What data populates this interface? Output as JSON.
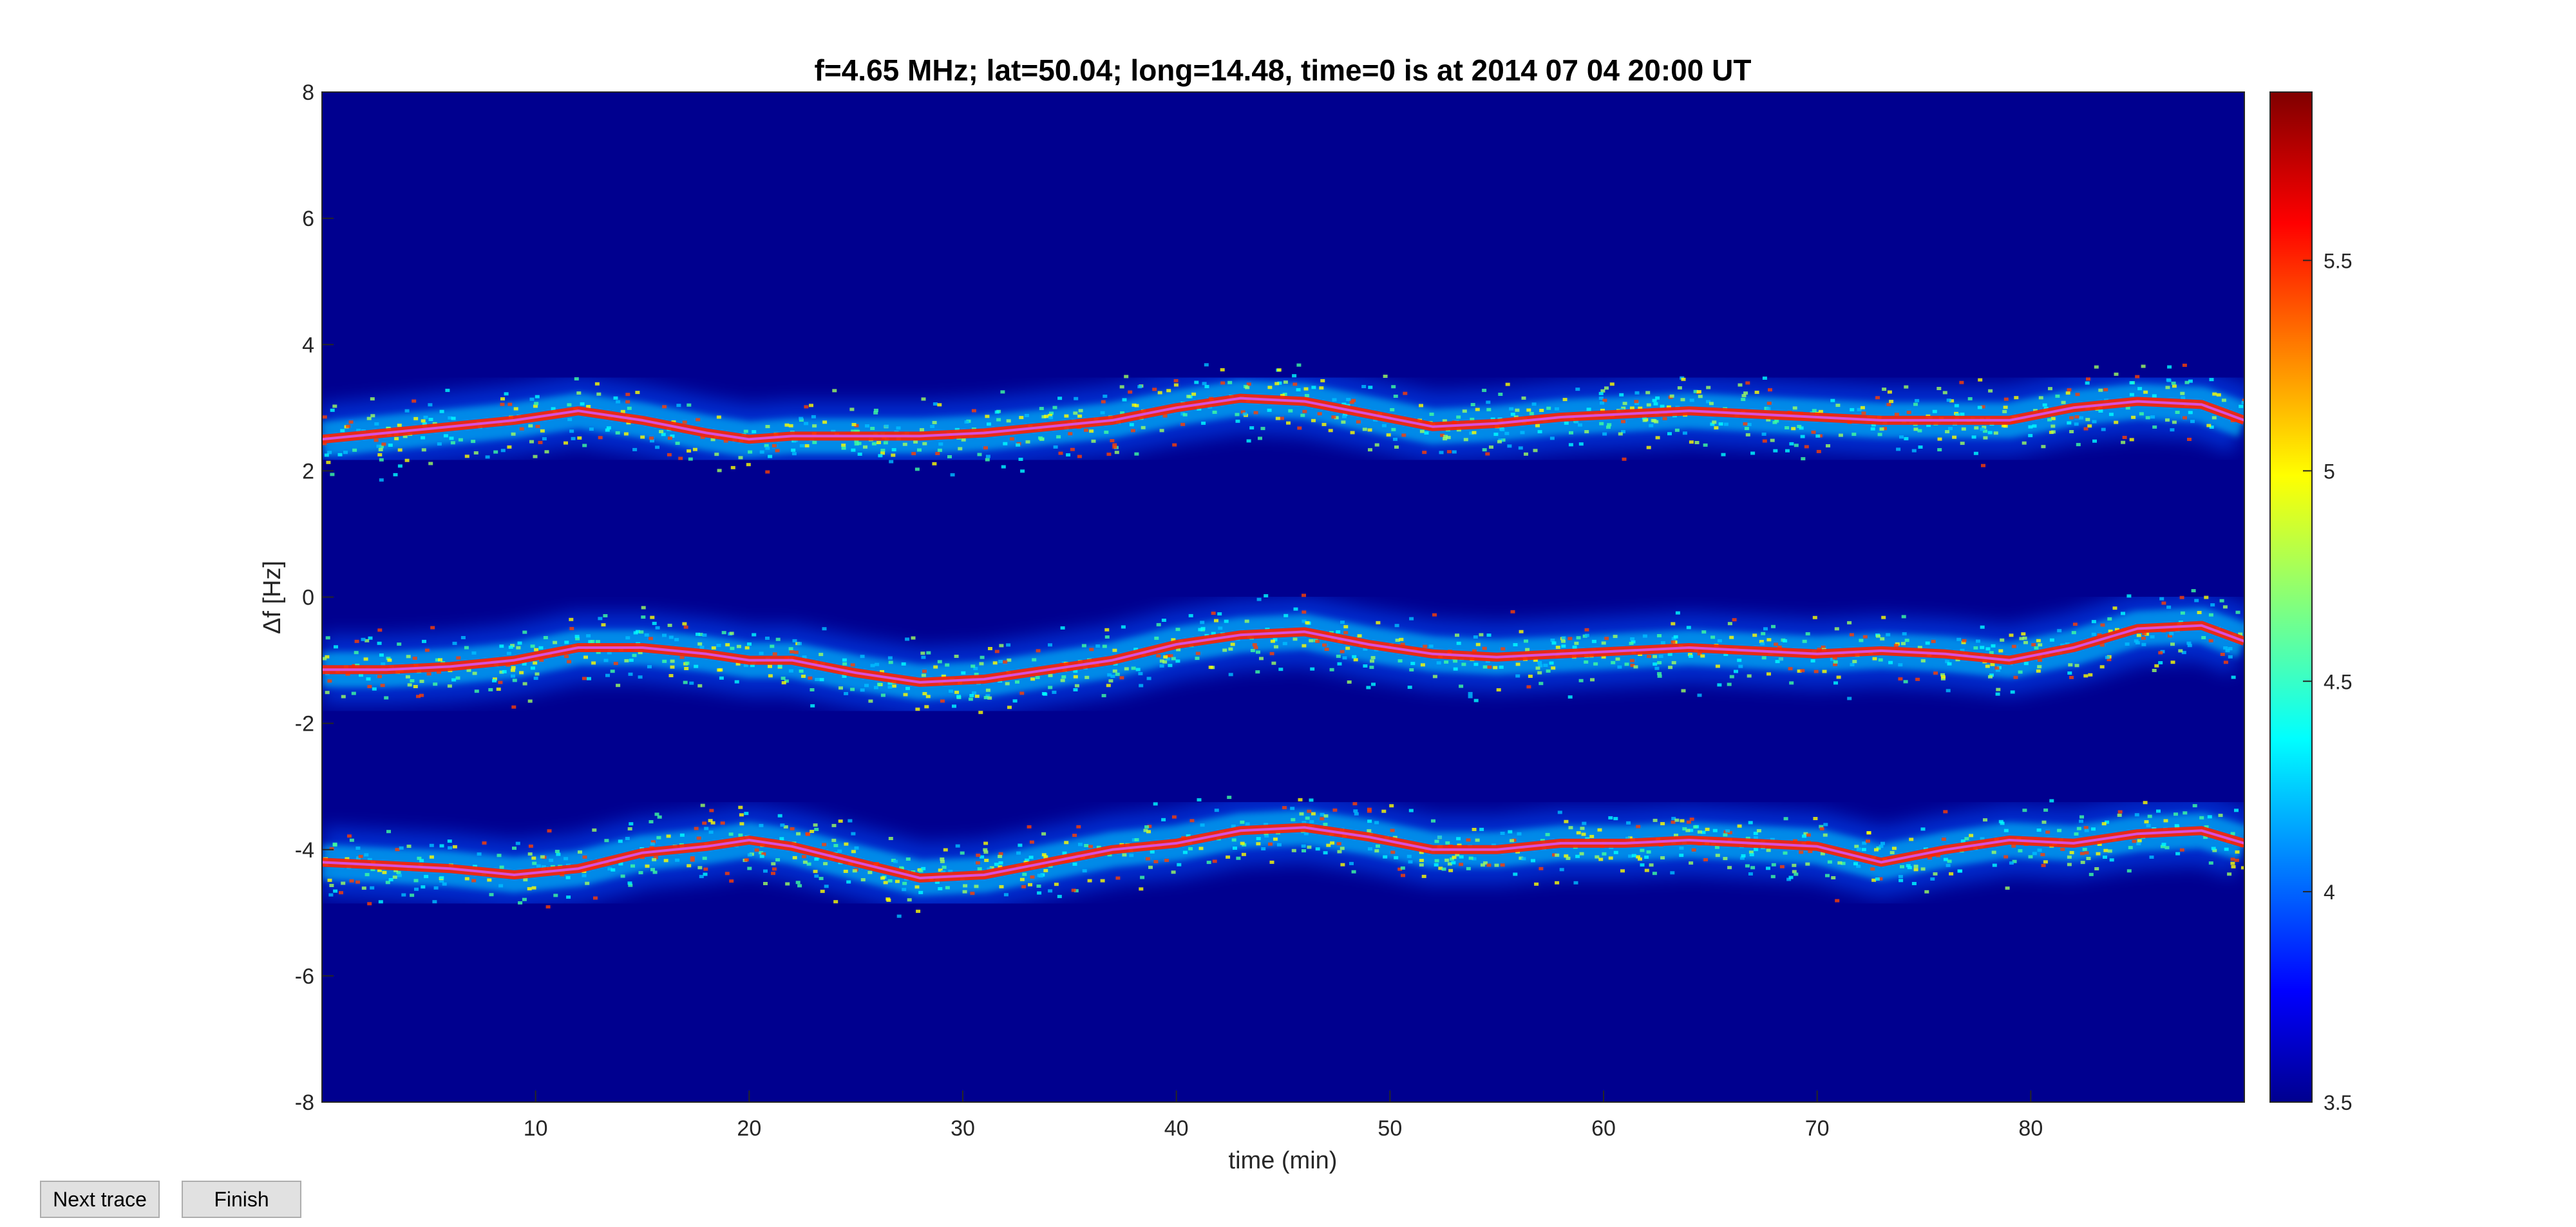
{
  "chart_data": {
    "type": "heatmap",
    "title": "f=4.65 MHz;  lat=50.04; long=14.48, time=0 is at 2014 07 04 20:00 UT",
    "xlabel": "time (min)",
    "ylabel": "Δf [Hz]",
    "xlim": [
      0,
      90
    ],
    "ylim": [
      -8,
      8
    ],
    "xticks": [
      10,
      20,
      30,
      40,
      50,
      60,
      70,
      80
    ],
    "yticks": [
      8,
      6,
      4,
      2,
      0,
      -2,
      -4,
      -6,
      -8
    ],
    "colorbar": {
      "clim": [
        3.5,
        5.9
      ],
      "ticks": [
        "5.5",
        "5",
        "4.5",
        "4",
        "3.5"
      ],
      "tick_values": [
        5.5,
        5.0,
        4.5,
        4.0,
        3.5
      ],
      "colormap": "jet"
    },
    "background_color": "#00008f",
    "trace_color": "#d94fd9",
    "series": [
      {
        "time": [
          0,
          3,
          6,
          9,
          12,
          15,
          18,
          20,
          22,
          25,
          28,
          31,
          34,
          37,
          40,
          43,
          46,
          49,
          52,
          55,
          58,
          61,
          64,
          67,
          70,
          73,
          76,
          79,
          82,
          85,
          88,
          90
        ],
        "df": [
          2.5,
          2.6,
          2.7,
          2.8,
          2.95,
          2.8,
          2.6,
          2.5,
          2.55,
          2.55,
          2.55,
          2.6,
          2.7,
          2.8,
          3.0,
          3.15,
          3.1,
          2.9,
          2.7,
          2.75,
          2.85,
          2.9,
          2.95,
          2.9,
          2.85,
          2.8,
          2.8,
          2.8,
          3.0,
          3.1,
          3.05,
          2.8
        ]
      },
      {
        "time": [
          0,
          3,
          6,
          9,
          12,
          15,
          18,
          20,
          22,
          25,
          28,
          31,
          34,
          37,
          40,
          43,
          46,
          49,
          52,
          55,
          58,
          61,
          64,
          67,
          70,
          73,
          76,
          79,
          82,
          85,
          88,
          90
        ],
        "df": [
          -1.15,
          -1.15,
          -1.1,
          -1.0,
          -0.8,
          -0.8,
          -0.9,
          -1.0,
          -1.0,
          -1.2,
          -1.35,
          -1.3,
          -1.15,
          -1.0,
          -0.75,
          -0.6,
          -0.55,
          -0.75,
          -0.9,
          -0.95,
          -0.9,
          -0.85,
          -0.8,
          -0.85,
          -0.9,
          -0.85,
          -0.9,
          -1.0,
          -0.8,
          -0.5,
          -0.45,
          -0.7
        ]
      },
      {
        "time": [
          0,
          3,
          6,
          9,
          12,
          15,
          18,
          20,
          22,
          25,
          28,
          31,
          34,
          37,
          40,
          43,
          46,
          49,
          52,
          55,
          58,
          61,
          64,
          67,
          70,
          73,
          76,
          79,
          82,
          85,
          88,
          90
        ],
        "df": [
          -4.2,
          -4.25,
          -4.3,
          -4.4,
          -4.3,
          -4.05,
          -3.95,
          -3.85,
          -3.95,
          -4.2,
          -4.45,
          -4.4,
          -4.2,
          -4.0,
          -3.9,
          -3.7,
          -3.65,
          -3.8,
          -4.0,
          -4.0,
          -3.9,
          -3.9,
          -3.85,
          -3.9,
          -3.95,
          -4.2,
          -4.0,
          -3.85,
          -3.9,
          -3.75,
          -3.7,
          -3.9
        ]
      }
    ]
  },
  "buttons": {
    "next_trace": "Next trace",
    "finish": "Finish"
  }
}
